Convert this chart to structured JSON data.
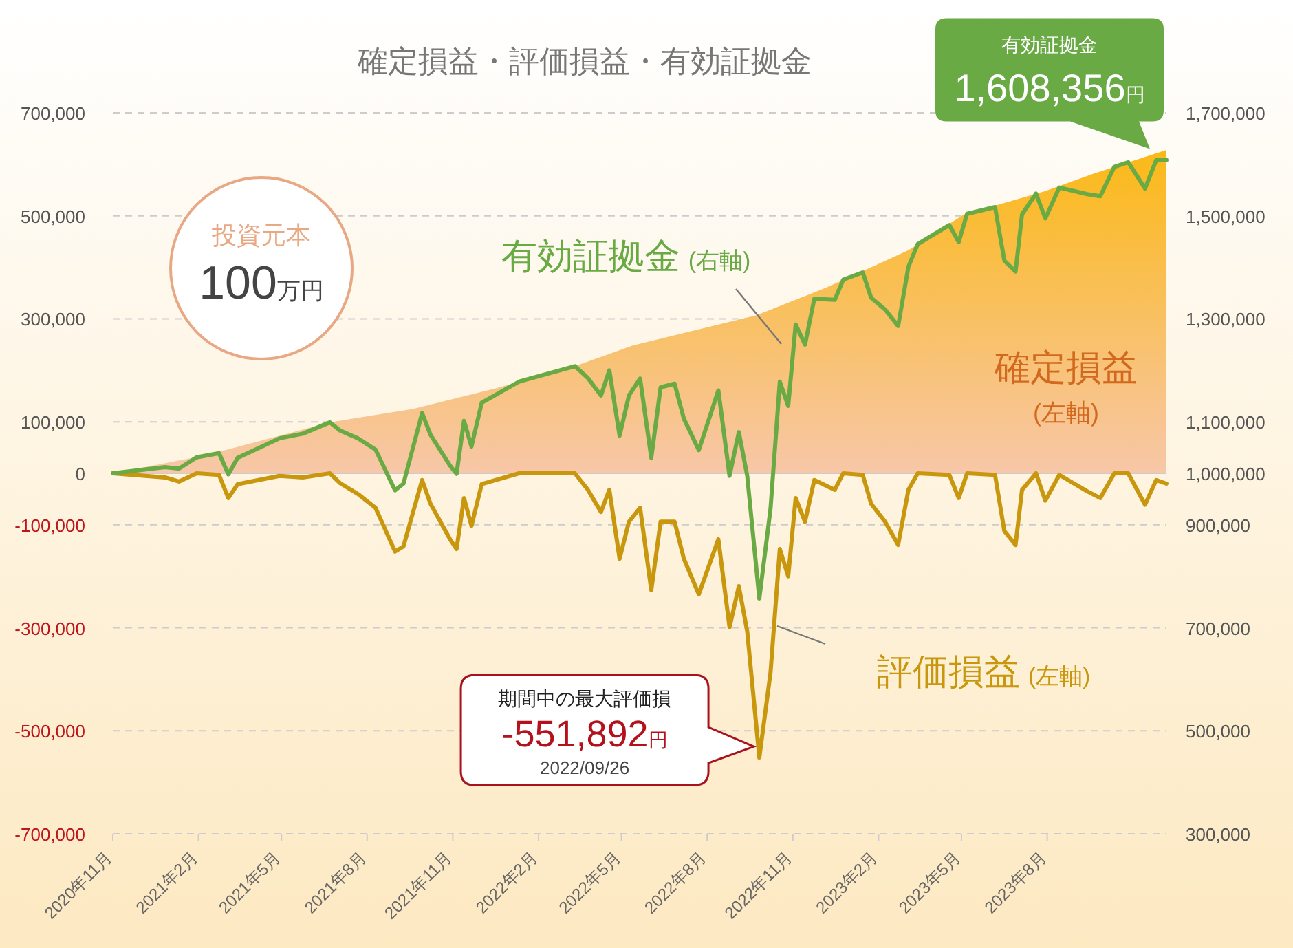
{
  "chart_data": {
    "type": "line",
    "title": "確定損益・評価損益・有効証拠金",
    "xlim": [
      "2020-11-01",
      "2023-12-07"
    ],
    "xticks": [
      {
        "value": "2020-11-01",
        "label": "2020年11月"
      },
      {
        "value": "2021-02-01",
        "label": "2021年2月"
      },
      {
        "value": "2021-05-01",
        "label": "2021年5月"
      },
      {
        "value": "2021-08-01",
        "label": "2021年8月"
      },
      {
        "value": "2021-11-01",
        "label": "2021年11月"
      },
      {
        "value": "2022-02-01",
        "label": "2022年2月"
      },
      {
        "value": "2022-05-01",
        "label": "2022年5月"
      },
      {
        "value": "2022-08-01",
        "label": "2022年8月"
      },
      {
        "value": "2022-11-01",
        "label": "2022年11月"
      },
      {
        "value": "2023-02-01",
        "label": "2023年2月"
      },
      {
        "value": "2023-05-01",
        "label": "2023年5月"
      },
      {
        "value": "2023-08-01",
        "label": "2023年8月"
      }
    ],
    "ylim": [
      -700000,
      700000
    ],
    "yticks": [
      {
        "value": 700000,
        "label": "700,000"
      },
      {
        "value": 500000,
        "label": "500,000"
      },
      {
        "value": 300000,
        "label": "300,000"
      },
      {
        "value": 100000,
        "label": "100,000"
      },
      0,
      {
        "value": -100000,
        "label": "-100,000"
      },
      {
        "value": -300000,
        "label": "-300,000"
      },
      {
        "value": -500000,
        "label": "-500,000"
      },
      {
        "value": -700000,
        "label": "-700,000"
      }
    ],
    "y2lim": [
      300000,
      1700000
    ],
    "y2ticks": [
      {
        "value": 1700000,
        "label": "1,700,000"
      },
      {
        "value": 1500000,
        "label": "1,500,000"
      },
      {
        "value": 1300000,
        "label": "1,300,000"
      },
      {
        "value": 1100000,
        "label": "1,100,000"
      },
      {
        "value": 1000000,
        "label": "1,000,000"
      },
      {
        "value": 900000,
        "label": "900,000"
      },
      {
        "value": 700000,
        "label": "700,000"
      },
      {
        "value": 500000,
        "label": "500,000"
      },
      {
        "value": 300000,
        "label": "300,000"
      }
    ],
    "grid": "y",
    "legend": false,
    "series": [
      {
        "name": "確定損益 (左軸)",
        "type": "area",
        "color": "#fbb917",
        "x": [
          "2020-11-01",
          "2021-02-09",
          "2021-06-22",
          "2021-09-19",
          "2021-12-17",
          "2022-03-12",
          "2022-05-13",
          "2022-09-23",
          "2022-12-06",
          "2023-03-05",
          "2023-05-03",
          "2023-07-30",
          "2023-09-17",
          "2023-12-07"
        ],
        "values": [
          0,
          35000,
          99000,
          125000,
          165000,
          208000,
          248000,
          307000,
          360000,
          433000,
          502000,
          548000,
          580000,
          628000
        ]
      },
      {
        "name": "評価損益 (左軸)",
        "type": "line",
        "color": "#c9970e",
        "x": [
          "2020-11-01",
          "2020-12-27",
          "2021-01-11",
          "2021-01-30",
          "2021-02-23",
          "2021-03-05",
          "2021-03-15",
          "2021-04-29",
          "2021-05-24",
          "2021-06-22",
          "2021-07-03",
          "2021-07-22",
          "2021-08-10",
          "2021-08-31",
          "2021-09-09",
          "2021-09-29",
          "2021-10-08",
          "2021-10-29",
          "2021-11-05",
          "2021-11-13",
          "2021-11-21",
          "2021-12-02",
          "2022-01-11",
          "2022-03-12",
          "2022-03-26",
          "2022-04-09",
          "2022-04-18",
          "2022-04-29",
          "2022-05-09",
          "2022-05-21",
          "2022-06-02",
          "2022-06-12",
          "2022-06-27",
          "2022-07-07",
          "2022-07-23",
          "2022-08-13",
          "2022-08-25",
          "2022-09-04",
          "2022-09-13",
          "2022-09-26",
          "2022-10-08",
          "2022-10-18",
          "2022-10-27",
          "2022-11-04",
          "2022-11-14",
          "2022-11-24",
          "2022-12-16",
          "2022-12-25",
          "2023-01-15",
          "2023-01-24",
          "2023-02-08",
          "2023-02-22",
          "2023-03-05",
          "2023-03-15",
          "2023-04-18",
          "2023-04-28",
          "2023-05-07",
          "2023-06-06",
          "2023-06-16",
          "2023-06-28",
          "2023-07-05",
          "2023-07-20",
          "2023-07-30",
          "2023-08-14",
          "2023-09-13",
          "2023-09-27",
          "2023-10-12",
          "2023-10-27",
          "2023-11-14",
          "2023-11-26",
          "2023-12-07"
        ],
        "values": [
          0,
          -8000,
          -16000,
          0,
          -3000,
          -48000,
          -21000,
          -5000,
          -8000,
          0,
          -19000,
          -40000,
          -67000,
          -152000,
          -142000,
          -13000,
          -59000,
          -128000,
          -147000,
          -48000,
          -102000,
          -21000,
          0,
          0,
          -32000,
          -75000,
          -32000,
          -166000,
          -94000,
          -67000,
          -227000,
          -94000,
          -94000,
          -166000,
          -235000,
          -128000,
          -299000,
          -219000,
          -307000,
          -551892,
          -387000,
          -147000,
          -200000,
          -48000,
          -94000,
          -13000,
          -32000,
          0,
          -3000,
          -59000,
          -94000,
          -139000,
          -32000,
          0,
          -3000,
          -48000,
          0,
          -3000,
          -112000,
          -139000,
          -32000,
          0,
          -53000,
          -3000,
          -35000,
          -48000,
          0,
          0,
          -61000,
          -13000,
          -20000
        ]
      },
      {
        "name": "有効証拠金 (右軸)",
        "type": "line",
        "color": "#6aaa45",
        "axis": "y2",
        "x": [
          "2020-11-01",
          "2020-12-27",
          "2021-01-11",
          "2021-01-30",
          "2021-02-23",
          "2021-03-05",
          "2021-03-15",
          "2021-04-29",
          "2021-05-24",
          "2021-06-22",
          "2021-07-03",
          "2021-07-22",
          "2021-08-10",
          "2021-08-31",
          "2021-09-09",
          "2021-09-29",
          "2021-10-08",
          "2021-10-29",
          "2021-11-05",
          "2021-11-13",
          "2021-11-21",
          "2021-12-02",
          "2022-01-11",
          "2022-03-12",
          "2022-03-26",
          "2022-04-09",
          "2022-04-18",
          "2022-04-29",
          "2022-05-09",
          "2022-05-21",
          "2022-06-02",
          "2022-06-12",
          "2022-06-27",
          "2022-07-07",
          "2022-07-23",
          "2022-08-13",
          "2022-08-25",
          "2022-09-04",
          "2022-09-13",
          "2022-09-26",
          "2022-10-08",
          "2022-10-18",
          "2022-10-27",
          "2022-11-04",
          "2022-11-14",
          "2022-11-24",
          "2022-12-16",
          "2022-12-25",
          "2023-01-15",
          "2023-01-24",
          "2023-02-08",
          "2023-02-22",
          "2023-03-05",
          "2023-03-15",
          "2023-04-18",
          "2023-04-28",
          "2023-05-07",
          "2023-06-06",
          "2023-06-16",
          "2023-06-28",
          "2023-07-05",
          "2023-07-20",
          "2023-07-30",
          "2023-08-14",
          "2023-09-13",
          "2023-09-27",
          "2023-10-12",
          "2023-10-27",
          "2023-11-14",
          "2023-11-26",
          "2023-12-07"
        ],
        "values": [
          1000000,
          1012000,
          1009000,
          1031000,
          1039000,
          998000,
          1030000,
          1068000,
          1077000,
          1099000,
          1083000,
          1068000,
          1046000,
          967000,
          980000,
          1117000,
          1075000,
          1015000,
          999000,
          1102000,
          1052000,
          1137000,
          1178000,
          1208000,
          1185000,
          1151000,
          1200000,
          1073000,
          1151000,
          1184000,
          1030000,
          1167000,
          1174000,
          1106000,
          1045000,
          1161000,
          995000,
          1080000,
          995000,
          757000,
          931000,
          1178000,
          1131000,
          1289000,
          1250000,
          1339000,
          1337000,
          1376000,
          1390000,
          1341000,
          1318000,
          1286000,
          1401000,
          1445000,
          1482000,
          1449000,
          1504000,
          1517000,
          1413000,
          1392000,
          1503000,
          1543000,
          1495000,
          1555000,
          1542000,
          1538000,
          1595000,
          1604000,
          1553000,
          1608000,
          1608356
        ]
      }
    ],
    "annotations": [
      "投資元本\n100万円",
      "有効証拠金\n1,608,356円",
      {
        "text": "期間中の最大評価損\n-551,892円\n2022/09/26",
        "x": "2022-09-26",
        "y": -551892
      }
    ]
  }
}
